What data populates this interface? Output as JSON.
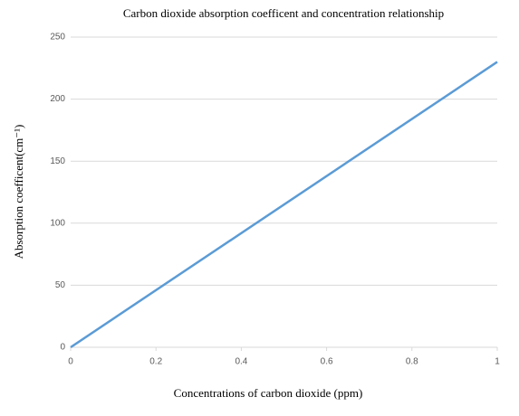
{
  "chart_data": {
    "type": "line",
    "title": "Carbon dioxide absorption coefficent and concentration relationship",
    "x_label": "Concentrations of carbon dioxide (ppm)",
    "y_label": "Absorption coefficent(cm⁻¹)",
    "x": [
      0,
      1
    ],
    "series": [
      {
        "name": "Absorption coefficent",
        "color": "#5b9bd5",
        "values": [
          0,
          230
        ]
      }
    ],
    "xlim": [
      0,
      1
    ],
    "xticks": [
      0,
      0.2,
      0.4,
      0.6,
      0.8,
      1
    ],
    "ylim": [
      0,
      250
    ],
    "yticks": [
      0,
      50,
      100,
      150,
      200,
      250
    ],
    "grid": true,
    "legend": false
  }
}
